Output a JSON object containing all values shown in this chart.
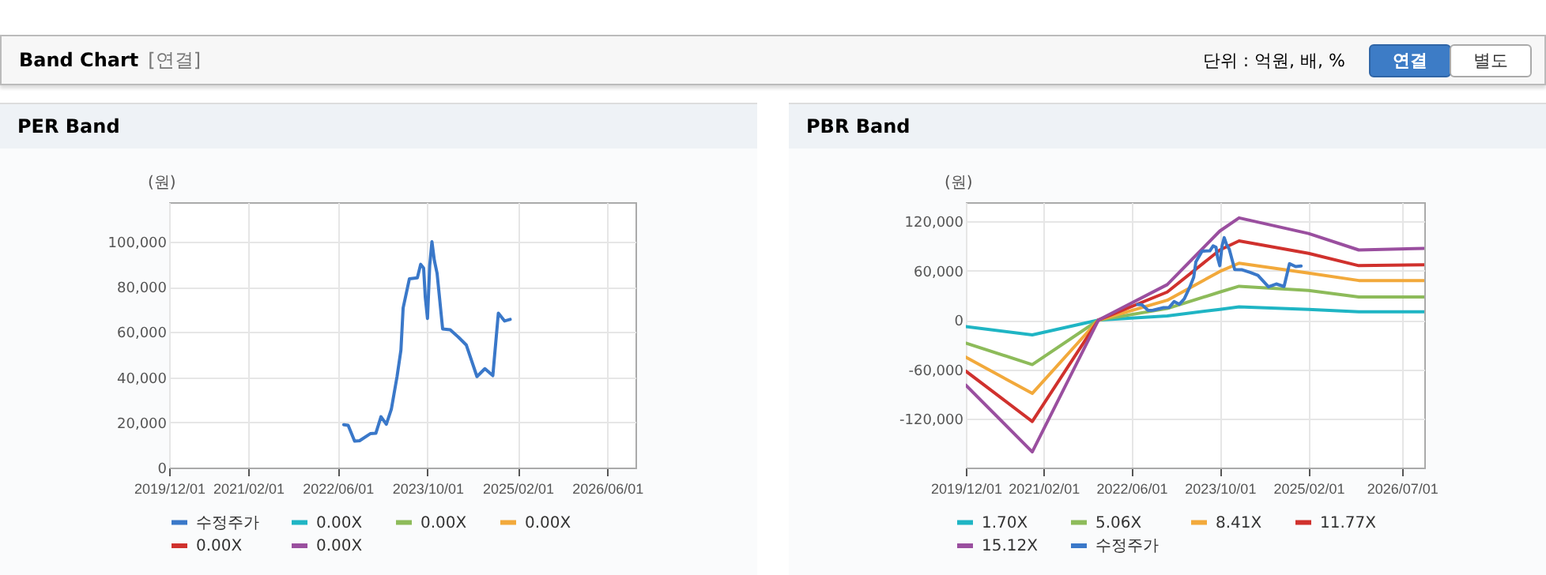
{
  "chart_data": [
    {
      "type": "other",
      "title": "Band Chart",
      "subtitle": "[연결]",
      "annotations": [
        "단위 : 억원, 배, %",
        "연결",
        "별도"
      ]
    },
    {
      "type": "line",
      "title": "PER Band",
      "ylabel": "(원)",
      "xlim": [
        "2019-12-01",
        "2026-11-01"
      ],
      "xticks": [
        {
          "value": "2019-12-01",
          "label": "2019/12/01"
        },
        {
          "value": "2021-02-01",
          "label": "2021/02/01"
        },
        {
          "value": "2022-06-01",
          "label": "2022/06/01"
        },
        {
          "value": "2023-10-01",
          "label": "2023/10/01"
        },
        {
          "value": "2025-02-01",
          "label": "2025/02/01"
        },
        {
          "value": "2026-06-01",
          "label": "2026/06/01"
        }
      ],
      "ylim": [
        0,
        117500
      ],
      "yticks": [
        {
          "value": 0,
          "label": "0"
        },
        {
          "value": 20000,
          "label": "20,000"
        },
        {
          "value": 40000,
          "label": "40,000"
        },
        {
          "value": 60000,
          "label": "60,000"
        },
        {
          "value": 80000,
          "label": "80,000"
        },
        {
          "value": 100000,
          "label": "100,000"
        }
      ],
      "grid": true,
      "legend": "bottom",
      "marker": "none",
      "line_style": "solid",
      "series": [
        {
          "name": "수정주가",
          "color": "#3a78c9",
          "x": [
            "2022-07-04",
            "2022-07-28",
            "2022-09-01",
            "2022-09-28",
            "2022-11-25",
            "2022-12-25",
            "2023-01-22",
            "2023-02-20",
            "2023-03-19",
            "2023-04-19",
            "2023-05-10",
            "2023-05-22",
            "2023-06-25",
            "2023-08-07",
            "2023-08-25",
            "2023-09-10",
            "2023-09-19",
            "2023-10-01",
            "2023-10-13",
            "2023-10-25",
            "2023-11-07",
            "2023-11-22",
            "2023-12-22",
            "2024-02-01",
            "2024-03-16",
            "2024-04-28",
            "2024-06-25",
            "2024-08-07",
            "2024-09-19",
            "2024-10-19",
            "2024-11-22",
            "2024-12-22"
          ],
          "values": [
            19000,
            18700,
            11700,
            11900,
            15000,
            15200,
            22500,
            19200,
            25800,
            40300,
            52000,
            70700,
            83600,
            84000,
            90000,
            88300,
            75400,
            66000,
            89500,
            100000,
            91800,
            86000,
            61400,
            61000,
            57800,
            54300,
            40300,
            43800,
            40700,
            68400,
            64900,
            65600
          ]
        },
        {
          "name": "0.00X",
          "color": "#1fb5c4",
          "values": [
            null
          ]
        },
        {
          "name": "0.00X",
          "color": "#8dbb5a",
          "values": [
            null
          ]
        },
        {
          "name": "0.00X",
          "color": "#f2a93b",
          "values": [
            null
          ]
        },
        {
          "name": "0.00X",
          "color": "#d0312d",
          "values": [
            null
          ]
        },
        {
          "name": "0.00X",
          "color": "#9a4f9f",
          "values": [
            null
          ]
        }
      ]
    },
    {
      "type": "line",
      "title": "PBR Band",
      "ylabel": "(원)",
      "xlim": [
        "2019-12-01",
        "2026-11-01"
      ],
      "xticks": [
        {
          "value": "2019-12-01",
          "label": "2019/12/01"
        },
        {
          "value": "2021-02-01",
          "label": "2021/02/01"
        },
        {
          "value": "2022-06-01",
          "label": "2022/06/01"
        },
        {
          "value": "2023-10-01",
          "label": "2023/10/01"
        },
        {
          "value": "2025-02-01",
          "label": "2025/02/01"
        },
        {
          "value": "2026-07-01",
          "label": "2026/07/01"
        }
      ],
      "ylim": [
        -179000,
        143000
      ],
      "yticks": [
        {
          "value": -120000,
          "label": "-120,000"
        },
        {
          "value": -60000,
          "label": "-60,000"
        },
        {
          "value": 0,
          "label": "0"
        },
        {
          "value": 60000,
          "label": "60,000"
        },
        {
          "value": 120000,
          "label": "120,000"
        }
      ],
      "grid": true,
      "legend": "bottom",
      "marker": "none",
      "line_style": "solid",
      "series": [
        {
          "name": "1.70X",
          "color": "#1fb5c4",
          "x": [
            "2019-12-01",
            "2020-12-01",
            "2021-12-01",
            "2022-12-15",
            "2023-10-01",
            "2024-01-15",
            "2025-02-01",
            "2025-11-05",
            "2026-11-01"
          ],
          "values": [
            -8000,
            -18000,
            0,
            5000,
            13000,
            16000,
            13000,
            10000,
            10000
          ]
        },
        {
          "name": "5.06X",
          "color": "#8dbb5a",
          "x": [
            "2019-12-01",
            "2020-12-01",
            "2021-12-01",
            "2022-12-15",
            "2023-10-01",
            "2024-01-15",
            "2025-02-01",
            "2025-11-05",
            "2026-11-01"
          ],
          "values": [
            -28000,
            -54000,
            0,
            14000,
            34000,
            41000,
            36000,
            28000,
            28000
          ]
        },
        {
          "name": "8.41X",
          "color": "#f2a93b",
          "x": [
            "2019-12-01",
            "2020-12-01",
            "2021-12-01",
            "2022-12-15",
            "2023-10-01",
            "2024-01-15",
            "2025-02-01",
            "2025-11-05",
            "2026-11-01"
          ],
          "values": [
            -45000,
            -89000,
            0,
            24000,
            59000,
            69000,
            57000,
            48000,
            48000
          ]
        },
        {
          "name": "11.77X",
          "color": "#d0312d",
          "x": [
            "2019-12-01",
            "2020-12-01",
            "2021-12-01",
            "2022-12-15",
            "2023-10-01",
            "2024-01-15",
            "2025-02-01",
            "2025-11-05",
            "2026-11-01"
          ],
          "values": [
            -62000,
            -123000,
            0,
            34000,
            85000,
            96000,
            81000,
            66000,
            67000
          ]
        },
        {
          "name": "15.12X",
          "color": "#9a4f9f",
          "x": [
            "2019-12-01",
            "2020-12-01",
            "2021-12-01",
            "2022-12-15",
            "2023-10-01",
            "2024-01-15",
            "2025-02-01",
            "2025-11-05",
            "2026-11-01"
          ],
          "values": [
            -79000,
            -160000,
            0,
            43000,
            108000,
            124000,
            105000,
            85000,
            87000
          ]
        },
        {
          "name": "수정주가",
          "color": "#3a78c9",
          "x": [
            "2022-07-04",
            "2022-07-28",
            "2022-09-01",
            "2022-09-28",
            "2022-11-25",
            "2022-12-25",
            "2023-01-22",
            "2023-02-20",
            "2023-03-19",
            "2023-04-19",
            "2023-05-10",
            "2023-05-22",
            "2023-06-25",
            "2023-08-07",
            "2023-08-25",
            "2023-09-10",
            "2023-09-19",
            "2023-10-01",
            "2023-10-13",
            "2023-10-25",
            "2023-11-07",
            "2023-11-22",
            "2023-12-22",
            "2024-02-01",
            "2024-03-16",
            "2024-04-28",
            "2024-06-25",
            "2024-08-07",
            "2024-09-19",
            "2024-10-19",
            "2024-11-22",
            "2024-12-22"
          ],
          "values": [
            19000,
            18700,
            11700,
            11900,
            15000,
            15200,
            22500,
            19200,
            25800,
            40300,
            52000,
            70700,
            83600,
            84000,
            90000,
            88300,
            75400,
            66000,
            89500,
            100000,
            91800,
            86000,
            61400,
            61000,
            57800,
            54300,
            40300,
            43800,
            40700,
            68400,
            64900,
            65600
          ]
        }
      ]
    }
  ]
}
